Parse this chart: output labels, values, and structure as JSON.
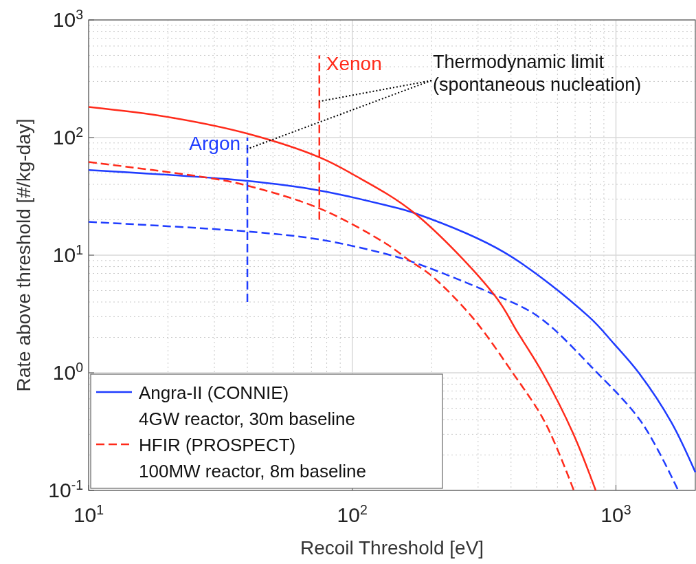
{
  "chart_data": {
    "type": "line",
    "xlabel": "Recoil Threshold [eV]",
    "ylabel": "Rate above threshold [#/kg-day]",
    "log": "xy",
    "grid": true,
    "legend": "bottom left",
    "xlim": [
      10,
      2000
    ],
    "ylim": [
      0.1,
      1000
    ],
    "xticks": [
      {
        "value": 10,
        "label": "10$^{1}$"
      },
      {
        "value": 100,
        "label": "10$^{2}$"
      },
      {
        "value": 1000,
        "label": "10$^{3}$"
      }
    ],
    "yticks": [
      {
        "value": 0.1,
        "label": "10$^{-1}$"
      },
      {
        "value": 1,
        "label": "10$^{0}$"
      },
      {
        "value": 10,
        "label": "10$^{1}$"
      },
      {
        "value": 100,
        "label": "10$^{2}$"
      },
      {
        "value": 1000,
        "label": "10$^{3}$"
      }
    ],
    "series": [
      {
        "name": "Angra-II (CONNIE)\n4GW reactor, 30m baseline",
        "color": "#1f3cff",
        "line_style": "solid",
        "x": [
          10,
          40,
          75,
          133,
          172,
          376,
          789,
          982,
          1225,
          1622,
          2000
        ],
        "values": [
          53,
          42.8,
          35.5,
          26.7,
          22.8,
          10.6,
          3.0,
          1.77,
          0.99,
          0.38,
          0.143
        ]
      },
      {
        "color": "#1f3cff",
        "line_style": "dashed",
        "x": [
          10,
          40,
          75,
          133,
          166,
          340,
          508,
          838,
          1250,
          1722
        ],
        "values": [
          19.2,
          15.9,
          13.6,
          10.3,
          8.9,
          4.7,
          3.0,
          1.03,
          0.38,
          0.1
        ]
      },
      {
        "color": "#ff2a1a",
        "line_style": "solid",
        "x": [
          10,
          19.8,
          40,
          75,
          100,
          172,
          348,
          424,
          528,
          686,
          838
        ],
        "values": [
          182,
          150,
          108,
          68,
          49,
          22.8,
          4.5,
          2.2,
          0.99,
          0.31,
          0.1
        ]
      },
      {
        "name": "HFIR (PROSPECT)\n100MW reactor, 8m baseline",
        "color": "#ff2a1a",
        "line_style": "dashed",
        "x": [
          10,
          27.8,
          40,
          75,
          133,
          166,
          198,
          284,
          407,
          538,
          692
        ],
        "values": [
          62,
          45.8,
          39,
          25,
          12.7,
          8.9,
          6.8,
          3.0,
          0.99,
          0.38,
          0.1
        ]
      },
      {
        "color": "#1f3cff",
        "line_style": "dashed",
        "x": [
          40,
          40
        ],
        "values": [
          4,
          100
        ]
      },
      {
        "color": "#ff2a1a",
        "line_style": "dashed",
        "x": [
          75,
          75
        ],
        "values": [
          20,
          500
        ]
      }
    ],
    "annotations": [
      "Argon",
      "Xenon",
      {
        "text": "Thermodynamic limit\n(spontaneous nucleation)",
        "x": 40,
        "y": 80
      }
    ]
  }
}
